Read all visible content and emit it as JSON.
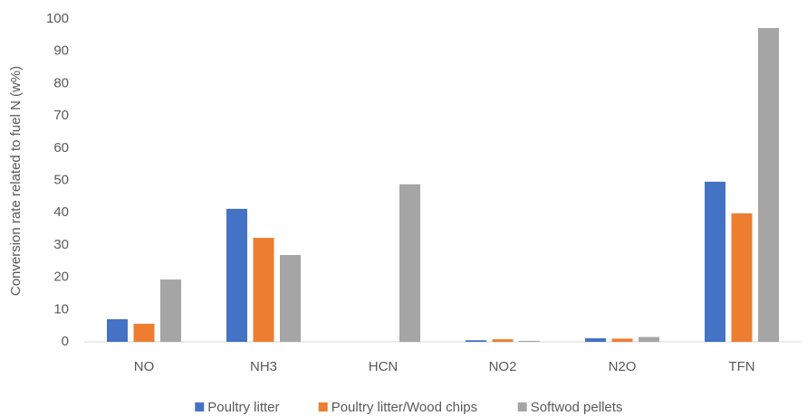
{
  "chart_data": {
    "type": "bar",
    "y_label": "Conversion rate related to fuel N (w%)",
    "categories": [
      "NO",
      "NH3",
      "HCN",
      "NO2",
      "N2O",
      "TFN"
    ],
    "series": [
      {
        "name": "Poultry litter",
        "color": "#4472c4",
        "values": [
          7.0,
          41.2,
          0,
          0.5,
          1.1,
          49.6
        ]
      },
      {
        "name": "Poultry litter/Wood chips",
        "color": "#ed7d31",
        "values": [
          5.6,
          32.2,
          0,
          0.8,
          1.0,
          39.8
        ]
      },
      {
        "name": "Softwod pellets",
        "color": "#a5a5a5",
        "values": [
          19.3,
          26.9,
          48.8,
          0.3,
          1.5,
          97.2
        ]
      }
    ],
    "ylim": [
      0,
      100
    ],
    "yticks": [
      0,
      10,
      20,
      30,
      40,
      50,
      60,
      70,
      80,
      90,
      100
    ],
    "grid": false,
    "legend": "bottom"
  }
}
